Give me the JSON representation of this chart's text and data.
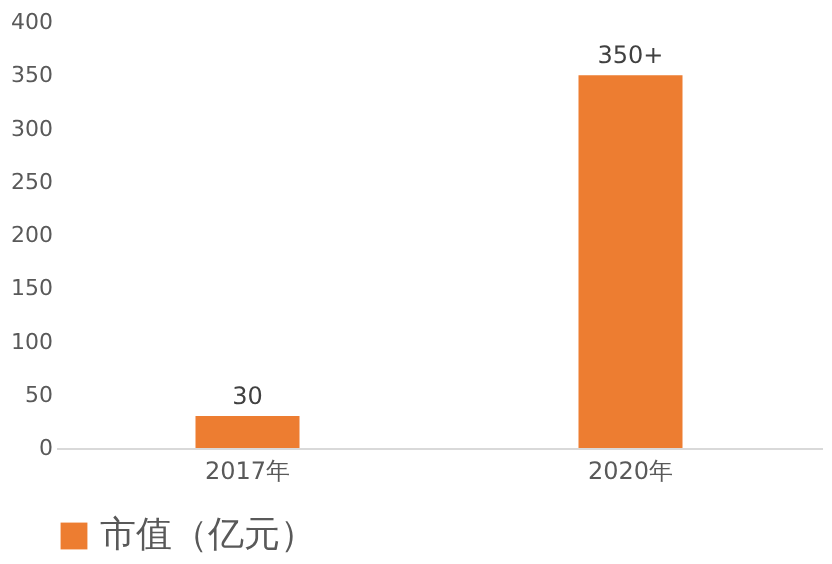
{
  "chart_data": {
    "type": "bar",
    "categories": [
      "2017年",
      "2020年"
    ],
    "series": [
      {
        "name": "市值（亿元）",
        "color": "#ed7d31",
        "values": [
          30,
          350
        ]
      }
    ],
    "value_labels": [
      "30",
      "350+"
    ],
    "ylim": [
      0,
      400
    ],
    "yticks": [
      0,
      50,
      100,
      150,
      200,
      250,
      300,
      350,
      400
    ],
    "grid": false,
    "legend": "bottom"
  }
}
